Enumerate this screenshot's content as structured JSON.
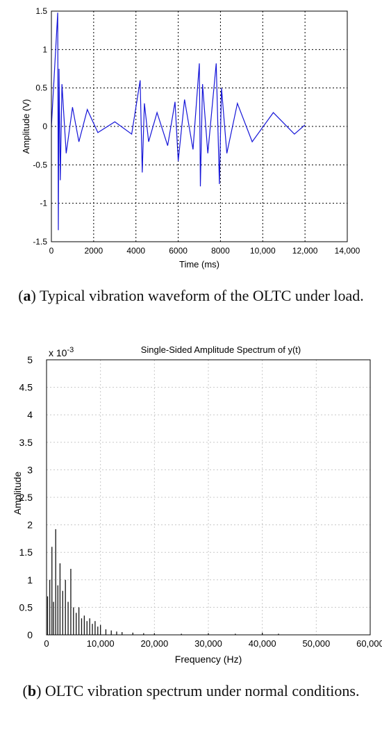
{
  "colors": {
    "waveform": "#1414d8",
    "spectrum": "#111111",
    "grid_a": "#000000",
    "grid_b": "#c8c8c8"
  },
  "chart_data": [
    {
      "type": "line",
      "xlabel": "Time (ms)",
      "ylabel": "Amplitude (V)",
      "xlim": [
        0,
        14000
      ],
      "ylim": [
        -1.5,
        1.5
      ],
      "xticks": [
        "0",
        "2000",
        "4000",
        "6000",
        "8000",
        "10,000",
        "12,000",
        "14,000"
      ],
      "yticks": [
        "-1.5",
        "-1",
        "-0.5",
        "0",
        "0.5",
        "1",
        "1.5"
      ],
      "grid": "dotted",
      "series": [
        {
          "x": [
            0,
            300,
            330,
            360,
            420,
            500,
            700,
            1000,
            1300,
            1700,
            2200,
            3000,
            3800,
            4200,
            4300,
            4400,
            4600,
            5000,
            5500,
            5850,
            6000,
            6300,
            6700,
            7000,
            7050,
            7150,
            7400,
            7800,
            7950,
            8050,
            8300,
            8800,
            9500,
            10500,
            11500,
            12000
          ],
          "y": [
            0,
            1.48,
            -1.35,
            0.75,
            -0.7,
            0.55,
            -0.35,
            0.25,
            -0.2,
            0.22,
            -0.08,
            0.06,
            -0.1,
            0.6,
            -0.6,
            0.3,
            -0.2,
            0.18,
            -0.25,
            0.32,
            -0.45,
            0.35,
            -0.3,
            0.82,
            -0.78,
            0.55,
            -0.35,
            0.82,
            -0.75,
            0.5,
            -0.35,
            0.3,
            -0.2,
            0.18,
            -0.1,
            0.02
          ]
        }
      ]
    },
    {
      "type": "bar",
      "title": "Single-Sided Amplitude Spectrum of y(t)",
      "xlabel": "Frequency (Hz)",
      "ylabel": "Amplitude",
      "y_multiplier": "x 10",
      "y_multiplier_exp": "-3",
      "xlim": [
        0,
        60000
      ],
      "ylim": [
        0,
        5
      ],
      "xticks": [
        "0",
        "10,000",
        "20,000",
        "30,000",
        "40,000",
        "50,000",
        "60,000"
      ],
      "yticks": [
        "0",
        "0.5",
        "1",
        "1.5",
        "2",
        "2.5",
        "3",
        "3.5",
        "4",
        "4.5",
        "5"
      ],
      "grid": "dotted",
      "x": [
        200,
        600,
        1000,
        1300,
        1700,
        2100,
        2500,
        3000,
        3500,
        4000,
        4500,
        5000,
        5500,
        6000,
        6500,
        7000,
        7500,
        8000,
        8500,
        9000,
        9500,
        10000,
        11000,
        12000,
        13000,
        14000,
        16000,
        18000,
        20000,
        25000,
        30000,
        35000,
        40000,
        43000
      ],
      "values": [
        0.7,
        1.0,
        1.6,
        0.6,
        1.92,
        0.9,
        1.3,
        0.8,
        1.0,
        0.6,
        1.2,
        0.5,
        0.4,
        0.5,
        0.3,
        0.35,
        0.25,
        0.3,
        0.2,
        0.25,
        0.15,
        0.18,
        0.1,
        0.08,
        0.06,
        0.05,
        0.04,
        0.03,
        0.03,
        0.02,
        0.03,
        0.02,
        0.04,
        0.02
      ]
    }
  ],
  "captions": {
    "a": {
      "letter": "a",
      "text": ") Typical vibration waveform of the OLTC under load."
    },
    "b": {
      "letter": "b",
      "text": ") OLTC vibration spectrum under normal conditions."
    }
  }
}
